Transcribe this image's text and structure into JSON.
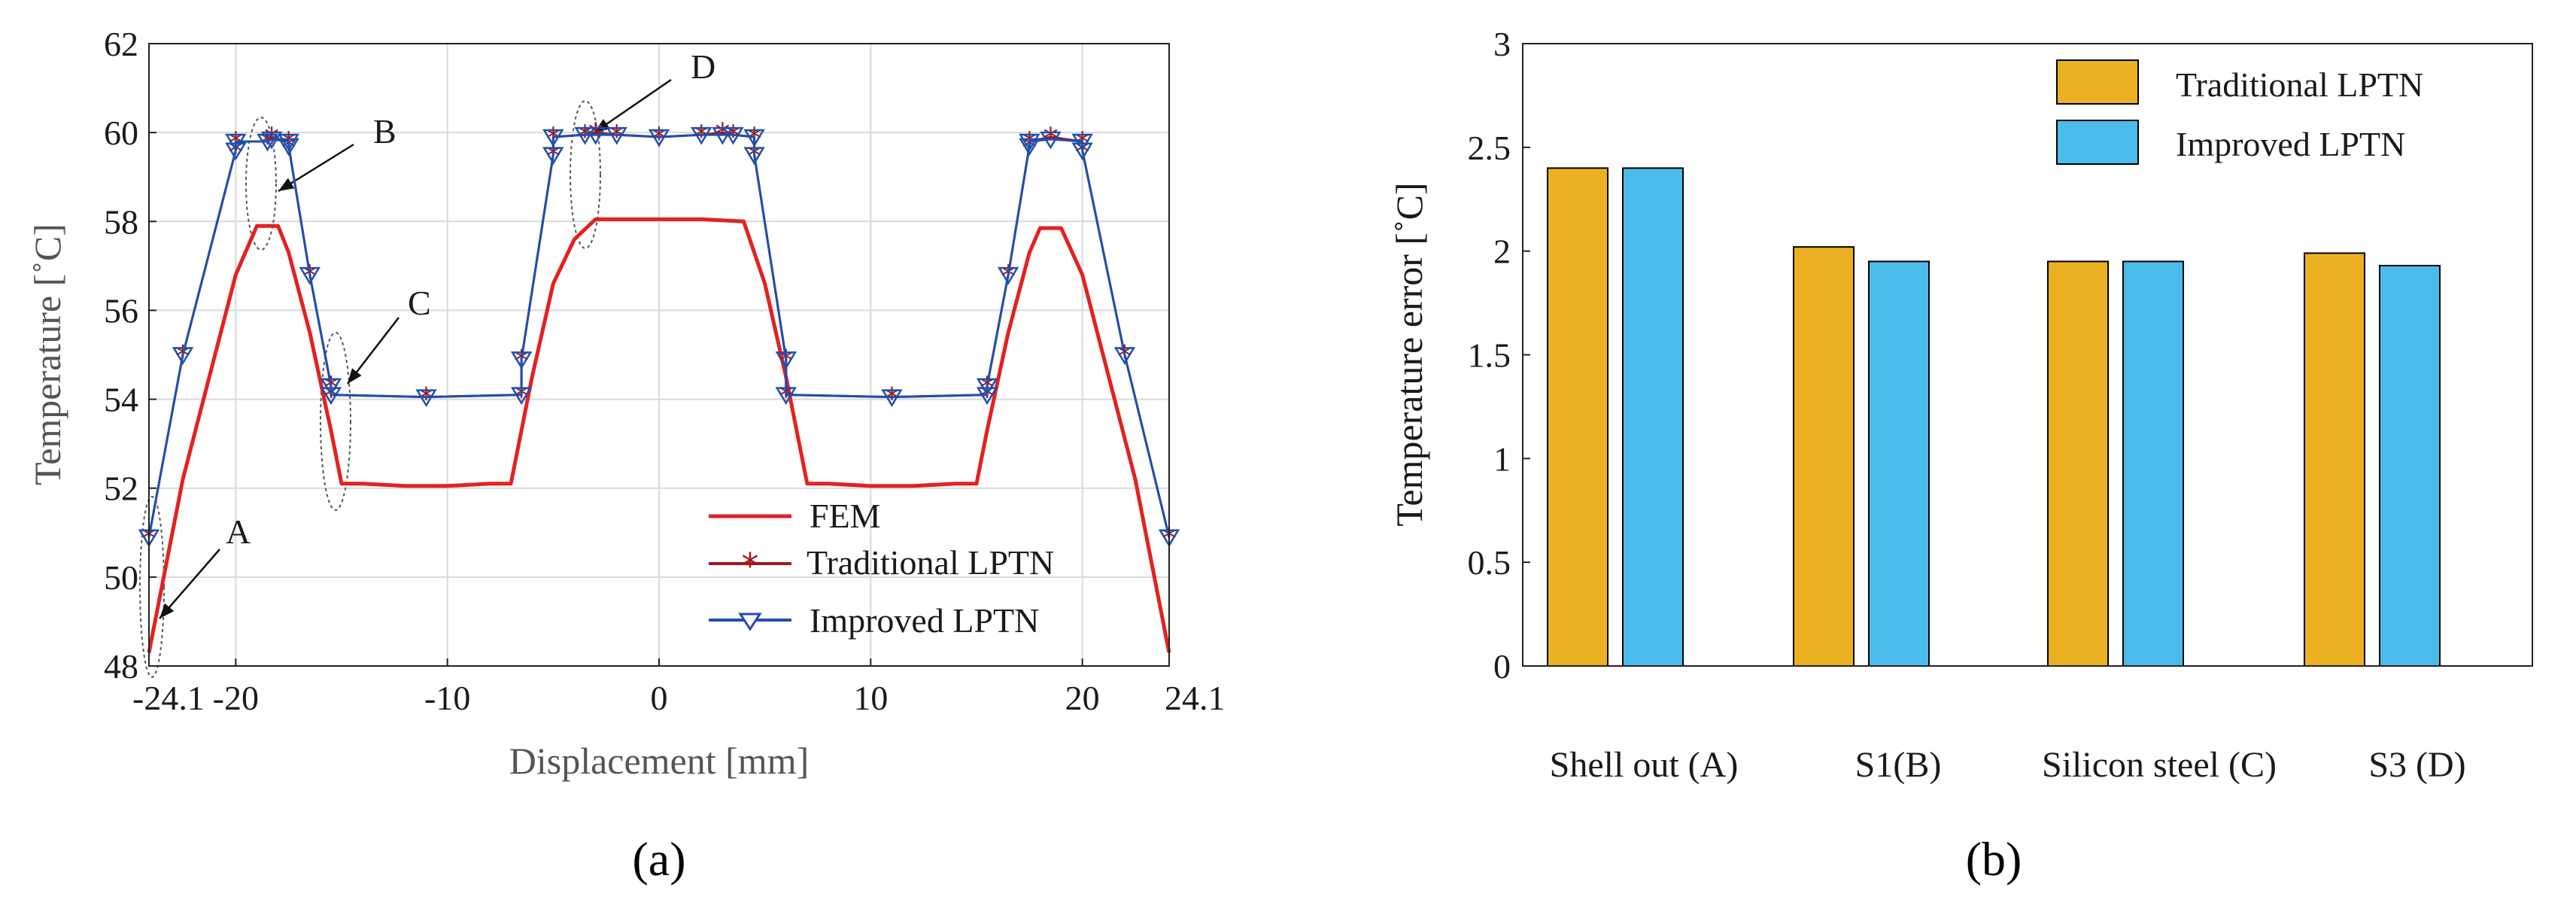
{
  "chart_data": [
    {
      "panel": "(a)",
      "type": "line",
      "xlabel": "Displacement [mm]",
      "ylabel": "Temperature [˚C]",
      "xlim": [
        -24.1,
        24.1
      ],
      "ylim": [
        48,
        62
      ],
      "xticks": [
        -24.1,
        -20,
        -10,
        0,
        10,
        20,
        24.1
      ],
      "xtick_labels": [
        "-24.1",
        "-20",
        "-10",
        "0",
        "10",
        "20",
        "24.1"
      ],
      "yticks": [
        48,
        50,
        52,
        54,
        56,
        58,
        60,
        62
      ],
      "grid": true,
      "legend_position": "bottom-right",
      "series": [
        {
          "name": "FEM",
          "color": "#e32121",
          "marker": "none",
          "x": [
            -24.1,
            -22.5,
            -20,
            -19,
            -18,
            -17.5,
            -16.5,
            -15.5,
            -15,
            -14,
            -12,
            -10,
            -8,
            -7,
            -6,
            -5,
            -4,
            -3,
            -2,
            0,
            2,
            4,
            5,
            6,
            7,
            8,
            10,
            12,
            14,
            15,
            15.5,
            16.5,
            17.5,
            18,
            19,
            20,
            22.5,
            24.1
          ],
          "y": [
            48.3,
            52.2,
            56.8,
            57.9,
            57.9,
            57.3,
            55.5,
            53.3,
            52.1,
            52.1,
            52.05,
            52.05,
            52.1,
            52.1,
            54.5,
            56.6,
            57.6,
            58.05,
            58.05,
            58.05,
            58.05,
            58.0,
            56.6,
            54.5,
            52.1,
            52.1,
            52.05,
            52.05,
            52.1,
            52.1,
            53.3,
            55.5,
            57.3,
            57.85,
            57.85,
            56.8,
            52.2,
            48.3
          ]
        },
        {
          "name": "Traditional LPTN",
          "color": "#a01818",
          "marker": "star",
          "x": [
            -24.1,
            -22.5,
            -20,
            -20,
            -18.5,
            -18.3,
            -17.5,
            -17.5,
            -16.5,
            -15.5,
            -15.5,
            -11,
            -6.5,
            -6.5,
            -5,
            -5,
            -3.5,
            -3,
            -2,
            0,
            2,
            3,
            3.5,
            4.5,
            4.5,
            6,
            6,
            11,
            15.5,
            15.5,
            16.5,
            17.5,
            17.5,
            18.5,
            20,
            20,
            22,
            24.1
          ],
          "y": [
            50.9,
            55.0,
            59.6,
            59.8,
            59.8,
            59.9,
            59.8,
            59.7,
            56.8,
            54.3,
            54.1,
            54.05,
            54.1,
            54.9,
            59.5,
            59.9,
            59.95,
            60.0,
            59.95,
            59.9,
            59.95,
            60.0,
            59.95,
            59.9,
            59.5,
            54.9,
            54.1,
            54.05,
            54.1,
            54.3,
            56.8,
            59.7,
            59.8,
            59.9,
            59.8,
            59.6,
            55.0,
            50.9
          ]
        },
        {
          "name": "Improved LPTN",
          "color": "#1f4fae",
          "marker": "triangle-down",
          "x": [
            -24.1,
            -22.5,
            -20,
            -20,
            -18.5,
            -18.3,
            -17.5,
            -17.5,
            -16.5,
            -15.5,
            -15.5,
            -11,
            -6.5,
            -6.5,
            -5,
            -5,
            -3.5,
            -3,
            -2,
            0,
            2,
            3,
            3.5,
            4.5,
            4.5,
            6,
            6,
            11,
            15.5,
            15.5,
            16.5,
            17.5,
            17.5,
            18.5,
            20,
            20,
            22,
            24.1
          ],
          "y": [
            50.9,
            55.0,
            59.6,
            59.8,
            59.8,
            59.85,
            59.8,
            59.7,
            56.8,
            54.3,
            54.1,
            54.05,
            54.1,
            54.9,
            59.5,
            59.9,
            59.95,
            59.95,
            59.95,
            59.9,
            59.95,
            59.95,
            59.95,
            59.9,
            59.5,
            54.9,
            54.1,
            54.05,
            54.1,
            54.3,
            56.8,
            59.7,
            59.8,
            59.85,
            59.8,
            59.6,
            55.0,
            50.9
          ]
        }
      ],
      "annotations": [
        {
          "label": "A",
          "x": -24.1,
          "y": 49.6
        },
        {
          "label": "B",
          "x": -18.4,
          "y": 59.0
        },
        {
          "label": "C",
          "x": -15.4,
          "y": 54.3
        },
        {
          "label": "D",
          "x": -3.3,
          "y": 59.0
        }
      ]
    },
    {
      "panel": "(b)",
      "type": "bar",
      "ylabel": "Temperature error [˚C]",
      "ylim": [
        0,
        3
      ],
      "yticks": [
        0,
        0.5,
        1,
        1.5,
        2,
        2.5,
        3
      ],
      "ytick_labels": [
        "0",
        "0.5",
        "1",
        "1.5",
        "2",
        "2.5",
        "3"
      ],
      "grid": false,
      "legend_position": "top-right",
      "categories": [
        "Shell out (A)",
        "S1(B)",
        "Silicon steel (C)",
        "S3 (D)"
      ],
      "series": [
        {
          "name": "Traditional LPTN",
          "color": "#ebb122",
          "values": [
            2.4,
            2.02,
            1.95,
            1.99
          ]
        },
        {
          "name": "Improved LPTN",
          "color": "#4bbcea",
          "values": [
            2.4,
            1.95,
            1.95,
            1.93
          ]
        }
      ]
    }
  ]
}
